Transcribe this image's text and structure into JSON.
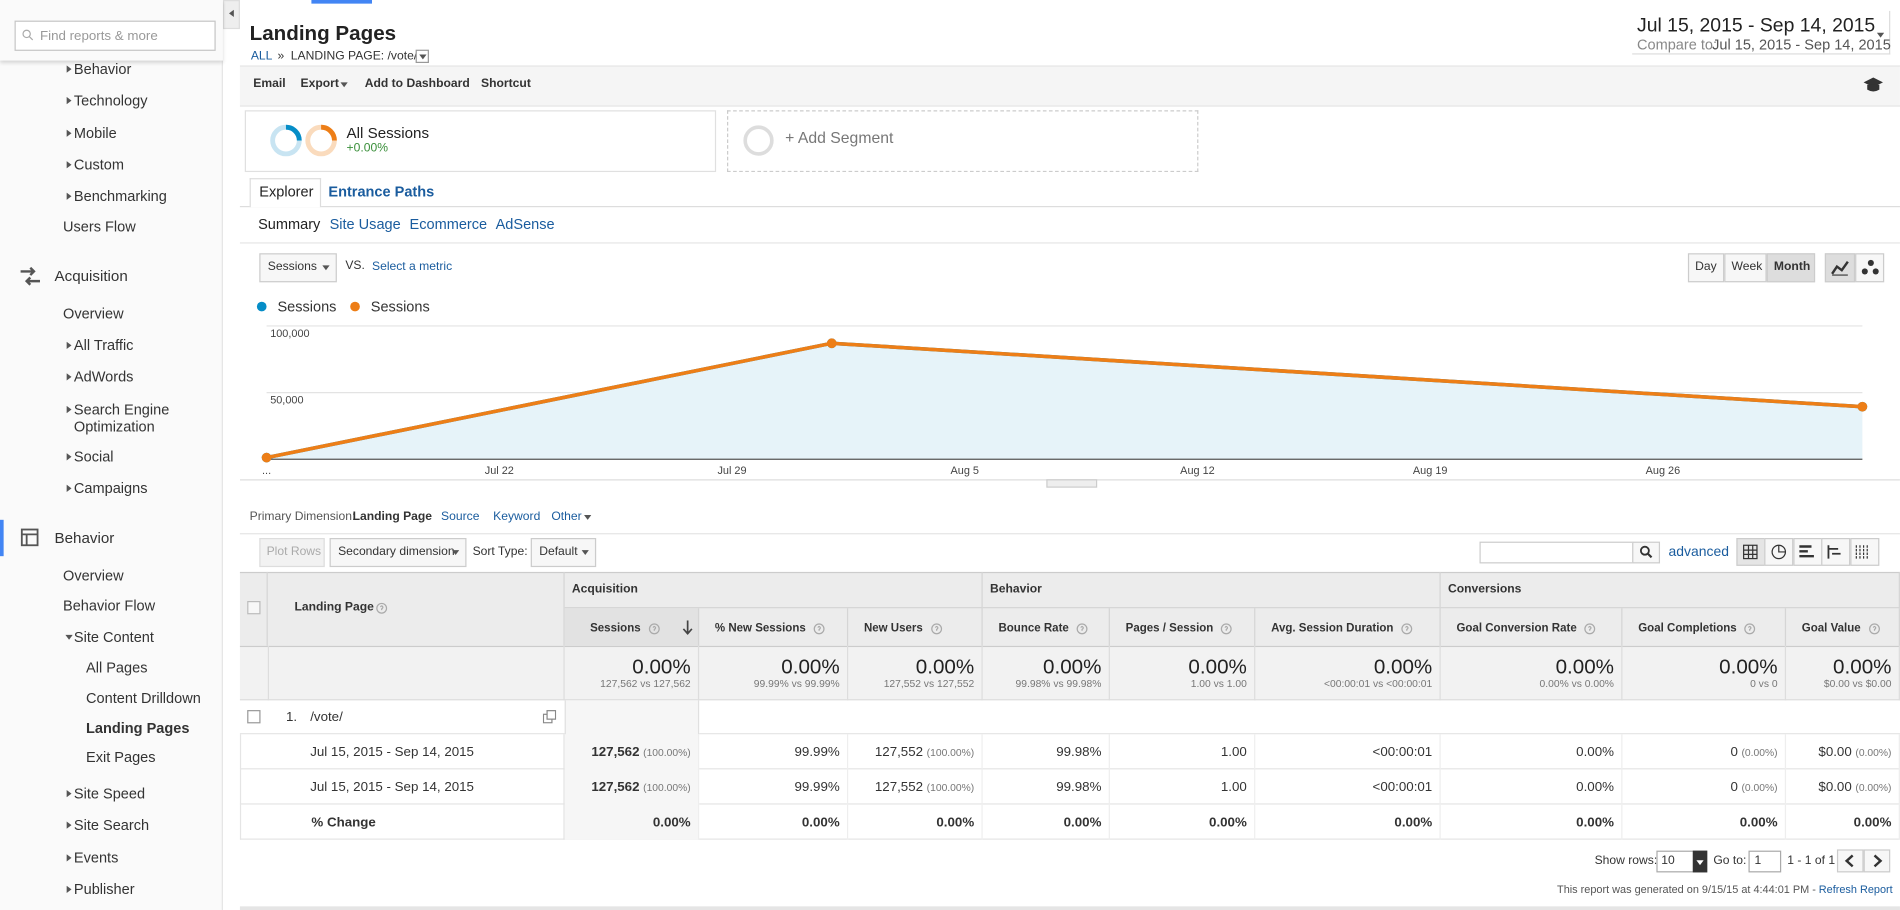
{
  "sidebar": {
    "search_placeholder": "Find reports & more",
    "items": [
      {
        "label": "Behavior",
        "depth": 1,
        "expandable": true
      },
      {
        "label": "Technology",
        "depth": 1,
        "expandable": true
      },
      {
        "label": "Mobile",
        "depth": 1,
        "expandable": true
      },
      {
        "label": "Custom",
        "depth": 1,
        "expandable": true
      },
      {
        "label": "Benchmarking",
        "depth": 1,
        "expandable": true
      },
      {
        "label": "Users Flow",
        "depth": 1
      },
      {
        "label": "Acquisition",
        "depth": 0
      },
      {
        "label": "Overview",
        "depth": 1
      },
      {
        "label": "All Traffic",
        "depth": 1,
        "expandable": true
      },
      {
        "label": "AdWords",
        "depth": 1,
        "expandable": true
      },
      {
        "label": "Search Engine Optimization",
        "depth": 1,
        "expandable": true
      },
      {
        "label": "Social",
        "depth": 1,
        "expandable": true
      },
      {
        "label": "Campaigns",
        "depth": 1,
        "expandable": true
      },
      {
        "label": "Behavior",
        "depth": 0,
        "active": true
      },
      {
        "label": "Overview",
        "depth": 1
      },
      {
        "label": "Behavior Flow",
        "depth": 1
      },
      {
        "label": "Site Content",
        "depth": 1,
        "expandable": true,
        "expanded": true
      },
      {
        "label": "All Pages",
        "depth": 2
      },
      {
        "label": "Content Drilldown",
        "depth": 2
      },
      {
        "label": "Landing Pages",
        "depth": 2,
        "selected": true
      },
      {
        "label": "Exit Pages",
        "depth": 2
      },
      {
        "label": "Site Speed",
        "depth": 1,
        "expandable": true
      },
      {
        "label": "Site Search",
        "depth": 1,
        "expandable": true
      },
      {
        "label": "Events",
        "depth": 1,
        "expandable": true
      },
      {
        "label": "Publisher",
        "depth": 1,
        "expandable": true
      }
    ]
  },
  "header": {
    "title": "Landing Pages",
    "breadcrumb": [
      "ALL",
      "»",
      "LANDING PAGE: /vote/"
    ],
    "date_range": "Jul 15, 2015 - Sep 14, 2015",
    "compare_label": "Compare to:",
    "compare_range": "Jul 15, 2015 - Sep 14, 2015"
  },
  "toolbar": [
    "Email",
    "Export",
    "Add to Dashboard",
    "Shortcut"
  ],
  "segments": {
    "name": "All Sessions",
    "change": "+0.00%",
    "add": "+ Add Segment"
  },
  "tabs": [
    "Explorer",
    "Entrance Paths"
  ],
  "subtabs": [
    "Summary",
    "Site Usage",
    "Ecommerce",
    "AdSense"
  ],
  "chart_controls": {
    "metric": "Sessions",
    "vs": "VS.",
    "select_metric": "Select a metric",
    "granularity": [
      "Day",
      "Week",
      "Month"
    ],
    "selected_granularity": "Month"
  },
  "chart_data": {
    "type": "line",
    "x": [
      0,
      17,
      48
    ],
    "xlim": [
      0,
      48
    ],
    "xticks": [
      {
        "value": 0,
        "label": "..."
      },
      {
        "value": 7,
        "label": "Jul 22"
      },
      {
        "value": 14,
        "label": "Jul 29"
      },
      {
        "value": 21,
        "label": "Aug 5"
      },
      {
        "value": 28,
        "label": "Aug 12"
      },
      {
        "value": 35,
        "label": "Aug 19"
      },
      {
        "value": 42,
        "label": "Aug 26"
      }
    ],
    "ylim": [
      0,
      100000
    ],
    "yticks": [
      {
        "value": 50000,
        "label": "50,000"
      },
      {
        "value": 100000,
        "label": "100,000"
      }
    ],
    "grid": true,
    "series": [
      {
        "name": "Sessions",
        "color": "#058dc7",
        "values": [
          1200,
          87000,
          39400
        ]
      },
      {
        "name": "Sessions",
        "color": "#ed7e17",
        "values": [
          1200,
          87000,
          39400
        ]
      }
    ]
  },
  "dimensions": {
    "label": "Primary Dimension:",
    "options": [
      "Landing Page",
      "Source",
      "Keyword",
      "Other"
    ]
  },
  "table_controls": {
    "plot_rows": "Plot Rows",
    "secondary": "Secondary dimension",
    "sort_label": "Sort Type:",
    "sort": "Default",
    "advanced": "advanced"
  },
  "table": {
    "dimension_header": "Landing Page",
    "groups": [
      "Acquisition",
      "Behavior",
      "Conversions"
    ],
    "columns": [
      "Sessions",
      "% New Sessions",
      "New Users",
      "Bounce Rate",
      "Pages / Session",
      "Avg. Session Duration",
      "Goal Conversion Rate",
      "Goal Completions",
      "Goal Value"
    ],
    "totals": [
      {
        "value": "0.00%",
        "compare": "127,562 vs 127,562"
      },
      {
        "value": "0.00%",
        "compare": "99.99% vs 99.99%"
      },
      {
        "value": "0.00%",
        "compare": "127,552 vs 127,552"
      },
      {
        "value": "0.00%",
        "compare": "99.98% vs 99.98%"
      },
      {
        "value": "0.00%",
        "compare": "1.00 vs 1.00"
      },
      {
        "value": "0.00%",
        "compare": "<00:00:01 vs <00:00:01"
      },
      {
        "value": "0.00%",
        "compare": "0.00% vs 0.00%"
      },
      {
        "value": "0.00%",
        "compare": "0 vs 0"
      },
      {
        "value": "0.00%",
        "compare": "$0.00 vs $0.00"
      }
    ],
    "rows": [
      {
        "index": "1.",
        "page": "/vote/",
        "entries": [
          {
            "label": "Jul 15, 2015 - Sep 14, 2015",
            "cells": [
              [
                "127,562",
                "(100.00%)"
              ],
              [
                "99.99%"
              ],
              [
                "127,552",
                "(100.00%)"
              ],
              [
                "99.98%"
              ],
              [
                "1.00"
              ],
              [
                "<00:00:01"
              ],
              [
                "0.00%"
              ],
              [
                "0",
                "(0.00%)"
              ],
              [
                "$0.00",
                "(0.00%)"
              ]
            ]
          },
          {
            "label": "Jul 15, 2015 - Sep 14, 2015",
            "cells": [
              [
                "127,562",
                "(100.00%)"
              ],
              [
                "99.99%"
              ],
              [
                "127,552",
                "(100.00%)"
              ],
              [
                "99.98%"
              ],
              [
                "1.00"
              ],
              [
                "<00:00:01"
              ],
              [
                "0.00%"
              ],
              [
                "0",
                "(0.00%)"
              ],
              [
                "$0.00",
                "(0.00%)"
              ]
            ]
          },
          {
            "label": "% Change",
            "cells": [
              [
                "0.00%"
              ],
              [
                "0.00%"
              ],
              [
                "0.00%"
              ],
              [
                "0.00%"
              ],
              [
                "0.00%"
              ],
              [
                "0.00%"
              ],
              [
                "0.00%"
              ],
              [
                "0.00%"
              ],
              [
                "0.00%"
              ]
            ]
          }
        ]
      }
    ]
  },
  "footer": {
    "show_rows_label": "Show rows:",
    "show_rows": "10",
    "goto_label": "Go to:",
    "goto": "1",
    "range": "1 - 1 of 1",
    "generated": "This report was generated on 9/15/15 at 4:44:01 PM - ",
    "refresh": "Refresh Report"
  }
}
